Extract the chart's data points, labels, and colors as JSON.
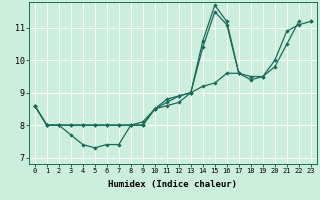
{
  "xlabel": "Humidex (Indice chaleur)",
  "bg_color": "#cceedd",
  "line_color": "#1a6b5a",
  "grid_color": "#ffffff",
  "xlim": [
    -0.5,
    23.5
  ],
  "ylim": [
    6.8,
    11.8
  ],
  "yticks": [
    7,
    8,
    9,
    10,
    11
  ],
  "xtick_labels": [
    "0",
    "1",
    "2",
    "3",
    "4",
    "5",
    "6",
    "7",
    "8",
    "9",
    "10",
    "11",
    "12",
    "13",
    "14",
    "15",
    "16",
    "17",
    "18",
    "19",
    "20",
    "21",
    "22",
    "23"
  ],
  "line1_y": [
    8.6,
    8.0,
    8.0,
    7.7,
    7.4,
    7.3,
    7.4,
    7.4,
    8.0,
    8.0,
    8.5,
    8.6,
    8.7,
    9.0,
    10.4,
    11.5,
    11.1,
    9.6,
    9.4,
    9.5,
    9.8,
    10.5,
    11.2,
    null
  ],
  "line2_y": [
    8.6,
    8.0,
    8.0,
    8.0,
    8.0,
    8.0,
    8.0,
    8.0,
    8.0,
    8.0,
    8.5,
    8.7,
    8.9,
    9.0,
    10.6,
    11.7,
    11.2,
    9.6,
    null,
    null,
    null,
    null,
    null,
    11.2
  ],
  "line3_y": [
    8.6,
    8.0,
    8.0,
    8.0,
    8.0,
    8.0,
    8.0,
    8.0,
    8.0,
    8.1,
    8.5,
    8.8,
    8.9,
    9.0,
    9.2,
    9.3,
    9.6,
    9.6,
    9.5,
    9.5,
    10.0,
    10.9,
    11.1,
    11.2
  ],
  "xlabel_fontsize": 6.5,
  "xtick_fontsize": 5.0,
  "ytick_fontsize": 6.0,
  "linewidth": 0.9,
  "markersize": 2.2
}
